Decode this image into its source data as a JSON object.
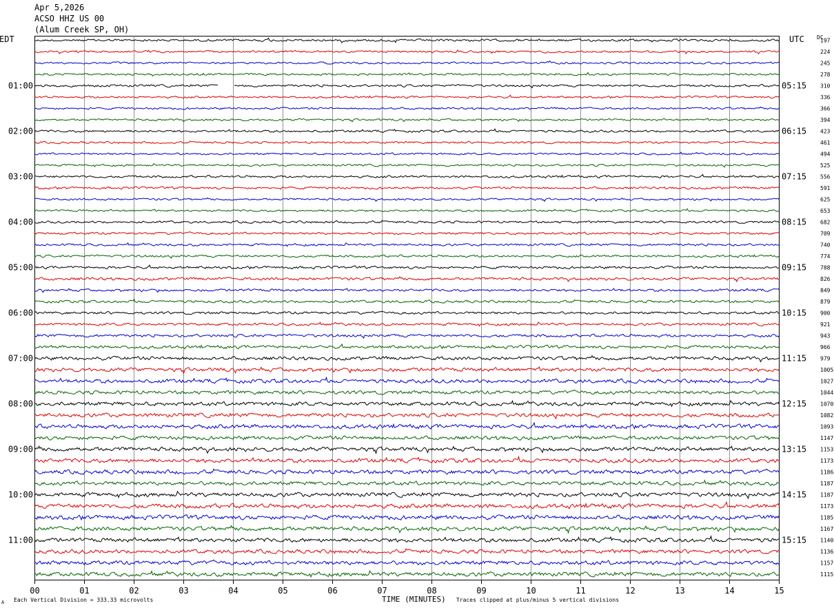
{
  "header": {
    "date": "Apr 5,2026",
    "station": "ACSO HHZ US 00",
    "location": "(Alum Creek SP, OH)"
  },
  "footer": {
    "scale_note": "Each Vertical Division =  333.33 microvolts",
    "xlabel": "TIME (MINUTES)",
    "clip_note": "Traces clipped at plus/minus 5 vertical divisions",
    "corner_mark": "A"
  },
  "chart_data": {
    "type": "line",
    "subtype": "helicorder",
    "left_axis_title": "EDT",
    "right_axis_title": "UTC",
    "dc_header": "DC",
    "x_ticks": [
      "00",
      "01",
      "02",
      "03",
      "04",
      "05",
      "06",
      "07",
      "08",
      "09",
      "10",
      "11",
      "12",
      "13",
      "14",
      "15"
    ],
    "xlim": [
      0,
      15
    ],
    "grid": "vertical lines each minute",
    "trace_count": 48,
    "trace_minutes": 15,
    "colors": [
      "#000000",
      "#dd0000",
      "#0000cc",
      "#006400"
    ],
    "left_times": [
      "01:00",
      "02:00",
      "03:00",
      "04:00",
      "05:00",
      "06:00",
      "07:00",
      "08:00",
      "09:00",
      "10:00",
      "11:00"
    ],
    "left_time_rows": [
      4,
      8,
      12,
      16,
      20,
      24,
      28,
      32,
      36,
      40,
      44
    ],
    "right_times": [
      "05:15",
      "06:15",
      "07:15",
      "08:15",
      "09:15",
      "10:15",
      "11:15",
      "12:15",
      "13:15",
      "14:15",
      "15:15"
    ],
    "dc_offsets": [
      197,
      224,
      245,
      278,
      310,
      336,
      366,
      394,
      423,
      461,
      494,
      525,
      556,
      591,
      625,
      653,
      682,
      709,
      740,
      774,
      788,
      826,
      849,
      879,
      900,
      921,
      943,
      966,
      979,
      1005,
      1027,
      1044,
      1070,
      1082,
      1093,
      1147,
      1153,
      1173,
      1186,
      1187,
      1187,
      1173,
      1185,
      1167,
      1140,
      1136,
      1157,
      1115
    ],
    "trace_amplitude": [
      0.9,
      0.8,
      0.8,
      0.8,
      0.9,
      0.8,
      0.8,
      0.8,
      0.9,
      0.8,
      0.8,
      0.8,
      0.9,
      0.9,
      0.8,
      0.8,
      0.9,
      0.9,
      0.9,
      0.9,
      1.0,
      1.1,
      1.0,
      1.0,
      1.0,
      1.0,
      1.1,
      1.2,
      1.4,
      1.5,
      1.5,
      1.4,
      1.5,
      1.5,
      1.6,
      1.5,
      1.6,
      1.6,
      1.6,
      1.5,
      1.6,
      1.7,
      1.7,
      1.6,
      1.6,
      1.5,
      1.6,
      1.6
    ],
    "data_gap": {
      "trace": 4,
      "start_min": 3.7,
      "end_min": 4.0
    }
  }
}
